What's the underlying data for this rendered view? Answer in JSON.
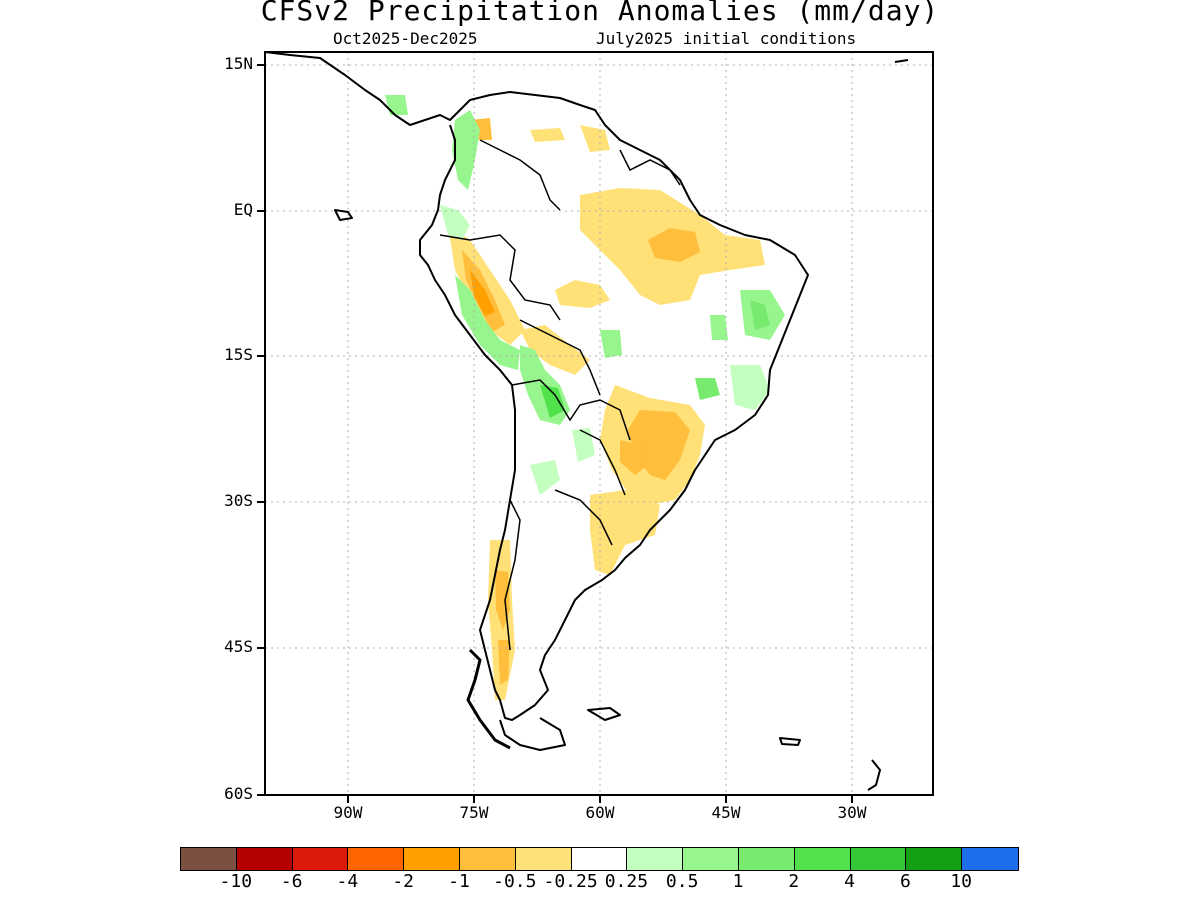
{
  "title": "CFSv2 Precipitation Anomalies (mm/day)",
  "subtitle_left": "Oct2025-Dec2025",
  "subtitle_right": "July2025 initial conditions",
  "y_ticks": [
    "15N",
    "EQ",
    "15S",
    "30S",
    "45S",
    "60S"
  ],
  "x_ticks": [
    "90W",
    "75W",
    "60W",
    "45W",
    "30W"
  ],
  "colorbar": {
    "colors": [
      "#7b5040",
      "#b40000",
      "#dc1a0a",
      "#ff6400",
      "#ffa000",
      "#ffbe3c",
      "#ffe178",
      "#ffffff",
      "#c3ffbe",
      "#96f58c",
      "#78eb6e",
      "#50e14b",
      "#37c837",
      "#14a014",
      "#1e6eeb"
    ],
    "labels": [
      "-10",
      "-6",
      "-4",
      "-2",
      "-1",
      "-0.5",
      "-0.25",
      "0.25",
      "0.5",
      "1",
      "2",
      "4",
      "6",
      "10"
    ]
  }
}
